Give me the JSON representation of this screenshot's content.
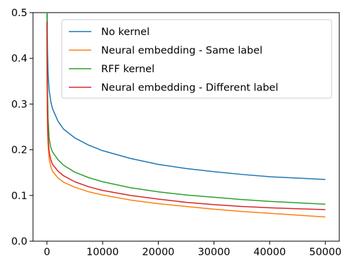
{
  "chart_data": {
    "type": "line",
    "title": "",
    "xlabel": "",
    "ylabel": "",
    "xlim": [
      -2500,
      52500
    ],
    "ylim": [
      0.0,
      0.5
    ],
    "x_ticks": [
      0,
      10000,
      20000,
      30000,
      40000,
      50000
    ],
    "x_tick_labels": [
      "0",
      "10000",
      "20000",
      "30000",
      "40000",
      "50000"
    ],
    "y_ticks": [
      0.0,
      0.1,
      0.2,
      0.3,
      0.4,
      0.5
    ],
    "y_tick_labels": [
      "0.0",
      "0.1",
      "0.2",
      "0.3",
      "0.4",
      "0.5"
    ],
    "grid": false,
    "legend_position": "top-right",
    "x": [
      1,
      50,
      100,
      200,
      400,
      700,
      1000,
      2000,
      3000,
      5000,
      7500,
      10000,
      15000,
      20000,
      25000,
      30000,
      35000,
      40000,
      45000,
      50000
    ],
    "series": [
      {
        "name": "No kernel",
        "color": "#1f77b4",
        "values": [
          0.6,
          0.47,
          0.42,
          0.37,
          0.33,
          0.305,
          0.29,
          0.262,
          0.245,
          0.226,
          0.21,
          0.198,
          0.181,
          0.168,
          0.159,
          0.152,
          0.146,
          0.141,
          0.138,
          0.135
        ]
      },
      {
        "name": "Neural embedding - Same label",
        "color": "#ff7f0e",
        "values": [
          0.45,
          0.3,
          0.25,
          0.21,
          0.18,
          0.163,
          0.153,
          0.138,
          0.129,
          0.118,
          0.108,
          0.101,
          0.09,
          0.082,
          0.076,
          0.07,
          0.065,
          0.061,
          0.057,
          0.053
        ]
      },
      {
        "name": "RFF kernel",
        "color": "#2ca02c",
        "values": [
          0.55,
          0.4,
          0.33,
          0.27,
          0.225,
          0.205,
          0.195,
          0.178,
          0.166,
          0.151,
          0.139,
          0.13,
          0.117,
          0.108,
          0.101,
          0.096,
          0.091,
          0.087,
          0.084,
          0.081
        ]
      },
      {
        "name": "Neural embedding - Different label",
        "color": "#d62728",
        "values": [
          0.48,
          0.34,
          0.28,
          0.23,
          0.195,
          0.178,
          0.168,
          0.153,
          0.143,
          0.13,
          0.119,
          0.111,
          0.1,
          0.092,
          0.085,
          0.08,
          0.076,
          0.073,
          0.071,
          0.069
        ]
      }
    ]
  }
}
